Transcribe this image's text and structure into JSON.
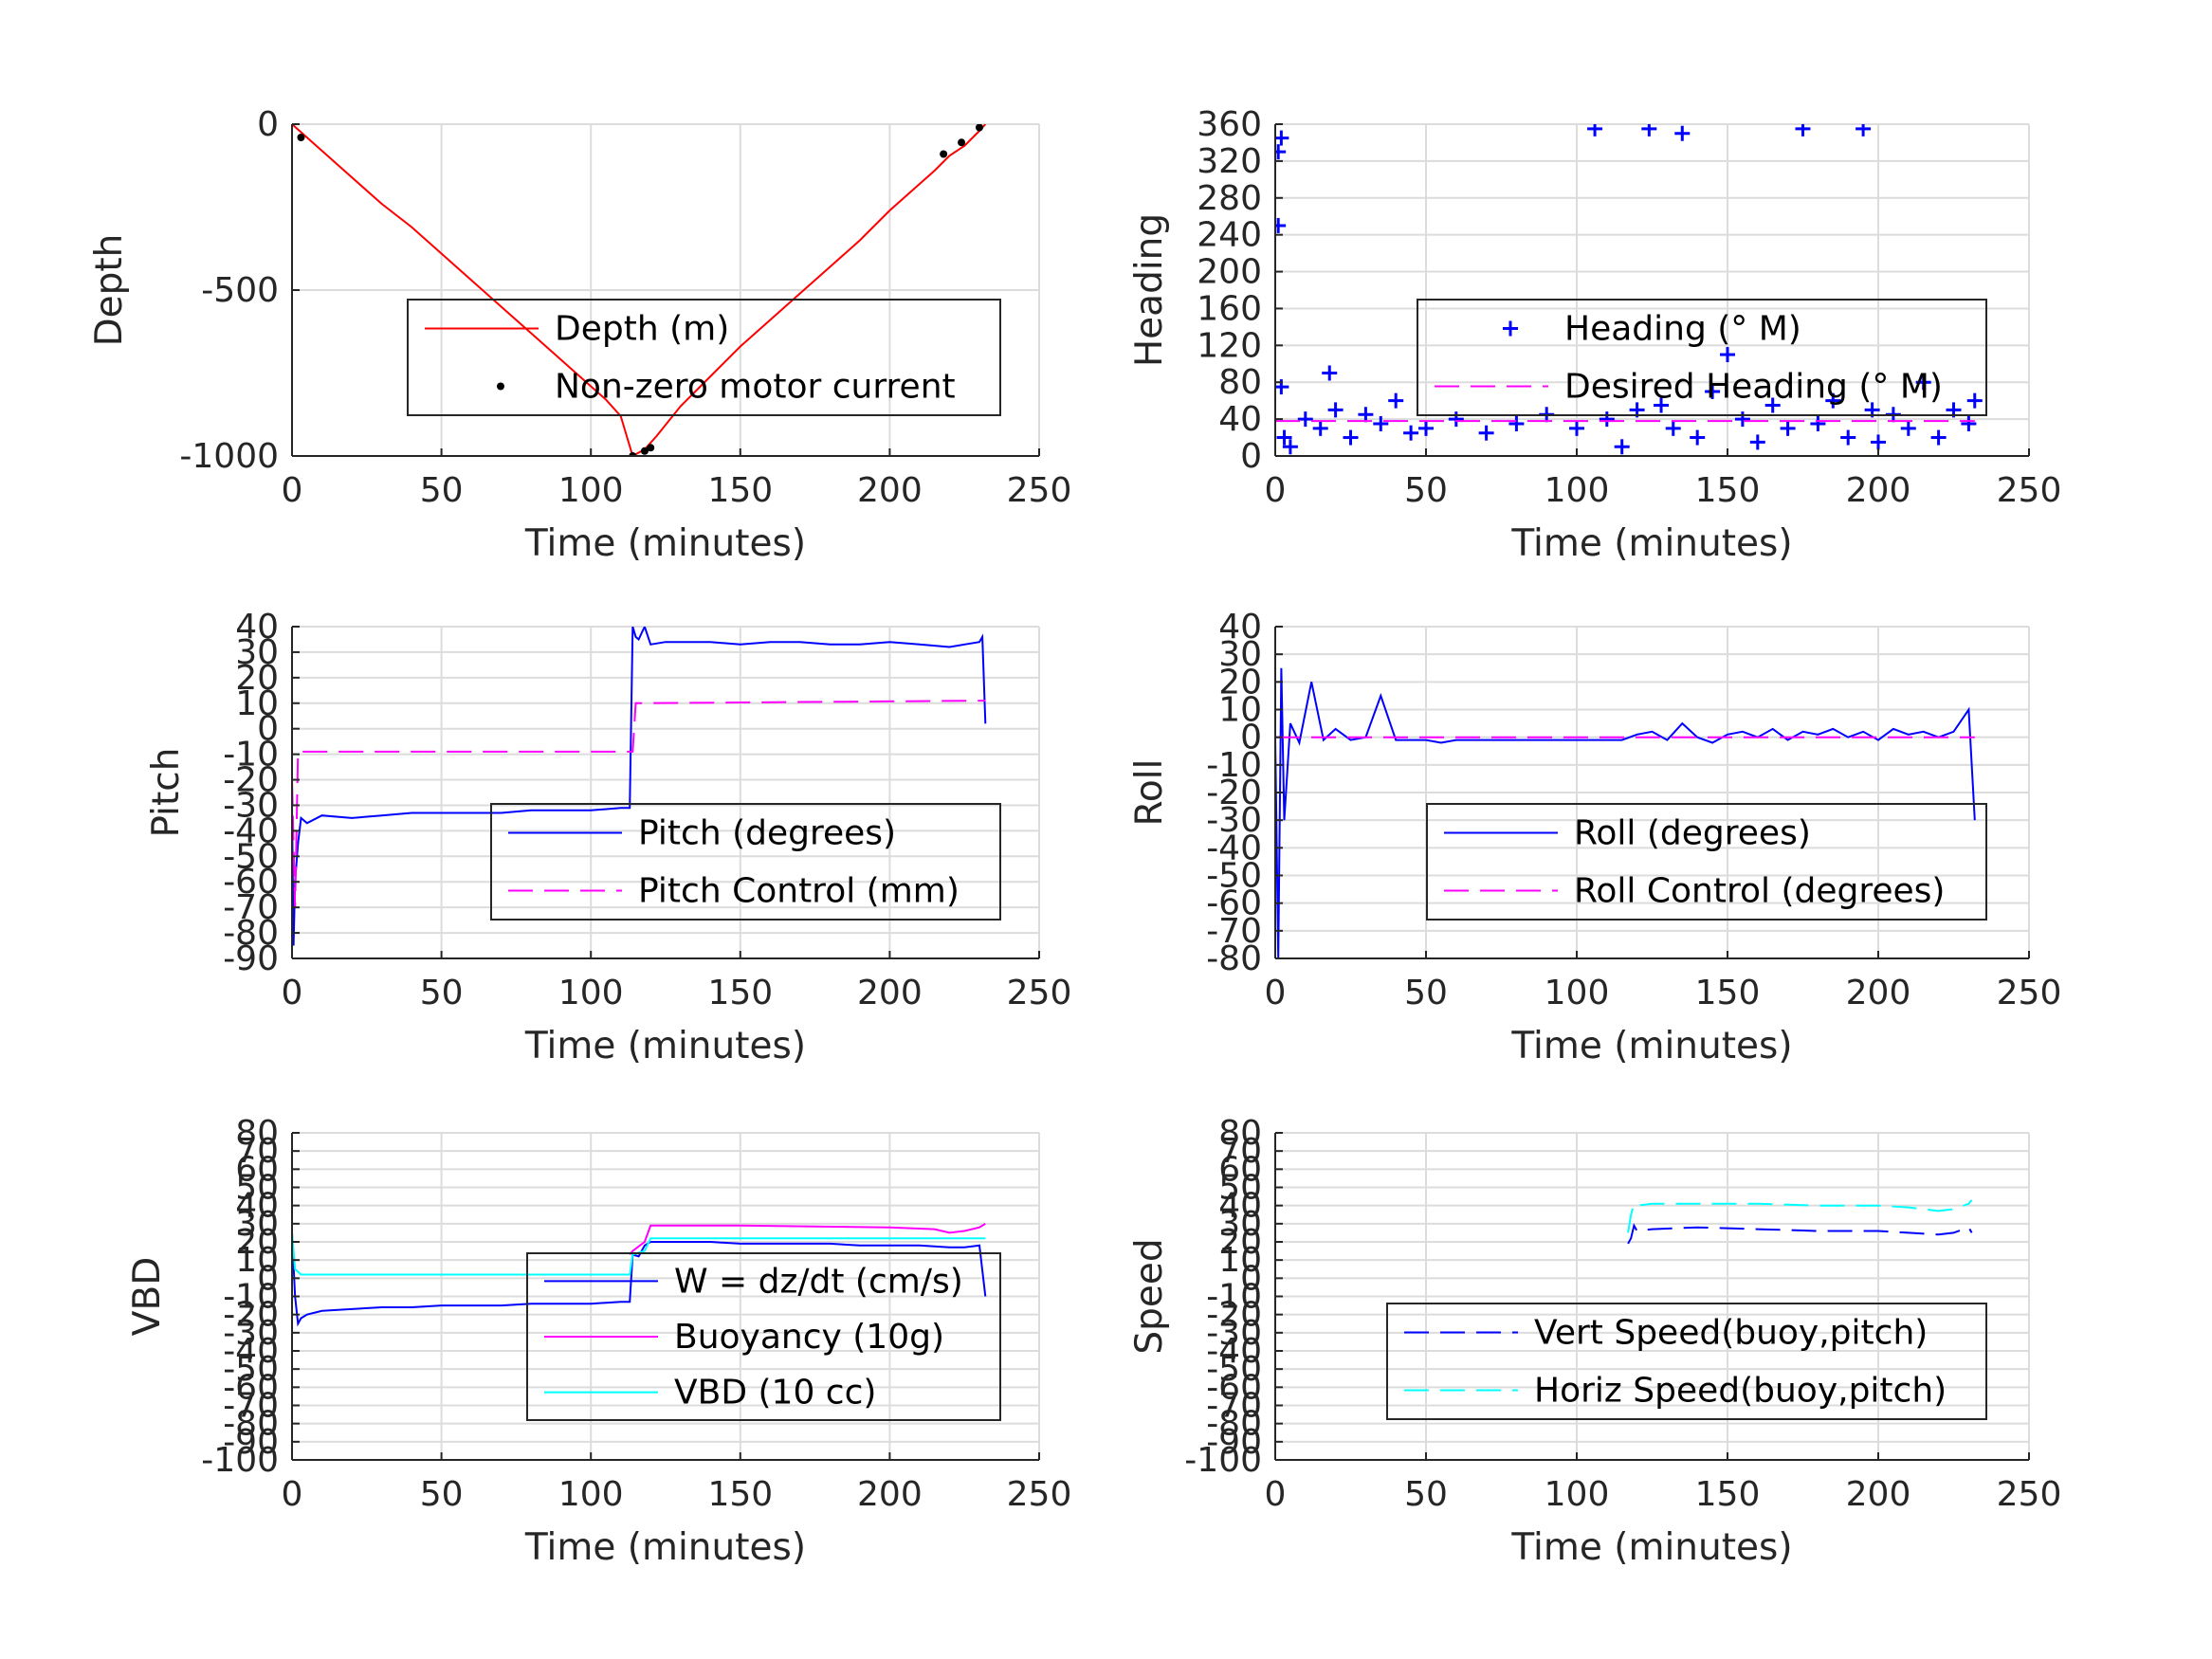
{
  "chart_data": [
    {
      "id": "depth",
      "type": "line",
      "xlabel": "Time (minutes)",
      "ylabel": "Depth",
      "xlim": [
        0,
        250
      ],
      "ylim": [
        -1000,
        0
      ],
      "xticks": [
        0,
        50,
        100,
        150,
        200,
        250
      ],
      "yticks": [
        0,
        -500,
        -1000
      ],
      "grid": true,
      "legend_position": "center-right",
      "series": [
        {
          "name": "Depth (m)",
          "style": "line",
          "color": "#ff0000",
          "x": [
            0,
            10,
            20,
            30,
            40,
            50,
            60,
            70,
            80,
            90,
            100,
            105,
            110,
            114,
            118,
            122,
            130,
            140,
            150,
            160,
            170,
            180,
            190,
            200,
            210,
            215,
            220,
            225,
            230,
            232
          ],
          "y": [
            0,
            -80,
            -160,
            -240,
            -310,
            -390,
            -470,
            -550,
            -630,
            -710,
            -790,
            -830,
            -880,
            -1000,
            -980,
            -940,
            -850,
            -760,
            -670,
            -590,
            -510,
            -430,
            -350,
            -260,
            -180,
            -140,
            -95,
            -65,
            -20,
            0
          ]
        },
        {
          "name": "Non-zero motor current",
          "style": "points",
          "color": "#000000",
          "x": [
            3,
            114,
            118,
            120,
            218,
            224,
            230
          ],
          "y": [
            -40,
            -1000,
            -985,
            -975,
            -90,
            -55,
            -10
          ]
        }
      ]
    },
    {
      "id": "heading",
      "type": "scatter",
      "xlabel": "Time (minutes)",
      "ylabel": "Heading",
      "xlim": [
        0,
        250
      ],
      "ylim": [
        0,
        360
      ],
      "xticks": [
        0,
        50,
        100,
        150,
        200,
        250
      ],
      "yticks": [
        0,
        40,
        80,
        120,
        160,
        200,
        240,
        280,
        320,
        360
      ],
      "grid": true,
      "legend_position": "center-right",
      "series": [
        {
          "name": "Heading (° M)",
          "style": "plus",
          "color": "#0000ff",
          "x": [
            1,
            1,
            2,
            2,
            3,
            5,
            10,
            15,
            18,
            20,
            25,
            30,
            35,
            40,
            45,
            50,
            60,
            70,
            80,
            90,
            100,
            106,
            110,
            115,
            120,
            124,
            128,
            132,
            135,
            140,
            145,
            150,
            155,
            160,
            165,
            170,
            175,
            180,
            185,
            190,
            195,
            198,
            200,
            205,
            210,
            215,
            220,
            225,
            230,
            232
          ],
          "y": [
            250,
            330,
            345,
            75,
            20,
            10,
            40,
            30,
            90,
            50,
            20,
            45,
            35,
            60,
            25,
            30,
            40,
            25,
            35,
            45,
            30,
            355,
            40,
            10,
            50,
            355,
            55,
            30,
            350,
            20,
            70,
            110,
            40,
            15,
            55,
            30,
            355,
            35,
            60,
            20,
            355,
            50,
            15,
            45,
            30,
            80,
            20,
            50,
            35,
            60
          ]
        },
        {
          "name": "Desired Heading (° M)",
          "style": "dash",
          "color": "#ff00ff",
          "x": [
            0,
            232
          ],
          "y": [
            38,
            38
          ]
        }
      ]
    },
    {
      "id": "pitch",
      "type": "line",
      "xlabel": "Time (minutes)",
      "ylabel": "Pitch",
      "xlim": [
        0,
        250
      ],
      "ylim": [
        -90,
        40
      ],
      "xticks": [
        0,
        50,
        100,
        150,
        200,
        250
      ],
      "yticks": [
        40,
        30,
        20,
        10,
        0,
        -10,
        -20,
        -30,
        -40,
        -50,
        -60,
        -70,
        -80,
        -90
      ],
      "grid": true,
      "legend_position": "center-right",
      "series": [
        {
          "name": "Pitch (degrees)",
          "style": "line",
          "color": "#0000ff",
          "x": [
            0,
            0.5,
            1,
            2,
            3,
            5,
            10,
            20,
            30,
            40,
            50,
            60,
            70,
            80,
            90,
            100,
            110,
            113,
            114,
            115,
            116,
            118,
            120,
            125,
            130,
            140,
            150,
            160,
            170,
            180,
            190,
            200,
            210,
            220,
            225,
            230,
            231,
            232
          ],
          "y": [
            -30,
            -85,
            -60,
            -45,
            -35,
            -37,
            -34,
            -35,
            -34,
            -33,
            -33,
            -33,
            -33,
            -32,
            -32,
            -32,
            -31,
            -31,
            40,
            36,
            35,
            40,
            33,
            34,
            34,
            34,
            33,
            34,
            34,
            33,
            33,
            34,
            33,
            32,
            33,
            34,
            36,
            2
          ]
        },
        {
          "name": "Pitch Control (mm)",
          "style": "dash",
          "color": "#ff00ff",
          "x": [
            0,
            1,
            2,
            114,
            115,
            232
          ],
          "y": [
            -20,
            -70,
            -9,
            -9,
            10,
            11
          ]
        }
      ]
    },
    {
      "id": "roll",
      "type": "line",
      "xlabel": "Time (minutes)",
      "ylabel": "Roll",
      "xlim": [
        0,
        250
      ],
      "ylim": [
        -80,
        40
      ],
      "xticks": [
        0,
        50,
        100,
        150,
        200,
        250
      ],
      "yticks": [
        40,
        30,
        20,
        10,
        0,
        -10,
        -20,
        -30,
        -40,
        -50,
        -60,
        -70,
        -80
      ],
      "grid": true,
      "legend_position": "center-right",
      "series": [
        {
          "name": "Roll (degrees)",
          "style": "line",
          "color": "#0000ff",
          "x": [
            0,
            1,
            2,
            3,
            5,
            8,
            12,
            16,
            20,
            25,
            30,
            35,
            40,
            45,
            50,
            55,
            60,
            65,
            70,
            75,
            80,
            85,
            90,
            95,
            100,
            105,
            110,
            115,
            120,
            125,
            130,
            135,
            140,
            145,
            150,
            155,
            160,
            165,
            170,
            175,
            180,
            185,
            190,
            195,
            200,
            205,
            210,
            215,
            220,
            225,
            230,
            232
          ],
          "y": [
            0,
            -80,
            25,
            -30,
            5,
            -2,
            20,
            -1,
            3,
            -1,
            0,
            15,
            -1,
            -1,
            -1,
            -2,
            -1,
            -1,
            -1,
            -1,
            -1,
            -1,
            -1,
            -1,
            -1,
            -1,
            -1,
            -1,
            1,
            2,
            -1,
            5,
            0,
            -2,
            1,
            2,
            0,
            3,
            -1,
            2,
            1,
            3,
            0,
            2,
            -1,
            3,
            1,
            2,
            0,
            2,
            10,
            -30
          ]
        },
        {
          "name": "Roll Control (degrees)",
          "style": "dash",
          "color": "#ff00ff",
          "x": [
            0,
            232
          ],
          "y": [
            0,
            0
          ]
        }
      ]
    },
    {
      "id": "vbd",
      "type": "line",
      "xlabel": "Time (minutes)",
      "ylabel": "VBD",
      "xlim": [
        0,
        250
      ],
      "ylim": [
        -100,
        80
      ],
      "xticks": [
        0,
        50,
        100,
        150,
        200,
        250
      ],
      "yticks": [
        80,
        70,
        60,
        50,
        40,
        30,
        20,
        10,
        0,
        -10,
        -20,
        -30,
        -40,
        -50,
        -60,
        -70,
        -80,
        -90,
        -100
      ],
      "grid": true,
      "legend_position": "center-right",
      "series": [
        {
          "name": "W = dz/dt (cm/s)",
          "style": "line",
          "color": "#0000ff",
          "x": [
            0,
            1,
            2,
            3,
            5,
            10,
            20,
            30,
            40,
            50,
            60,
            70,
            80,
            90,
            100,
            110,
            113,
            114,
            116,
            118,
            120,
            130,
            140,
            150,
            160,
            170,
            180,
            190,
            200,
            210,
            220,
            225,
            230,
            232
          ],
          "y": [
            25,
            -10,
            -25,
            -22,
            -20,
            -18,
            -17,
            -16,
            -16,
            -15,
            -15,
            -15,
            -14,
            -14,
            -14,
            -13,
            -13,
            13,
            12,
            18,
            20,
            20,
            20,
            19,
            19,
            19,
            19,
            18,
            18,
            18,
            17,
            17,
            18,
            -10
          ]
        },
        {
          "name": "Buoyancy (10g)",
          "style": "line",
          "color": "#ff00ff",
          "x": [
            113,
            114,
            118,
            120,
            150,
            200,
            215,
            220,
            225,
            230,
            232
          ],
          "y": [
            13,
            15,
            20,
            29,
            29,
            28,
            27,
            25,
            26,
            28,
            30
          ]
        },
        {
          "name": "VBD (10 cc)",
          "style": "line",
          "color": "#00ffff",
          "x": [
            0,
            1,
            3,
            5,
            113,
            114,
            118,
            120,
            200,
            232
          ],
          "y": [
            25,
            5,
            2,
            2,
            2,
            13,
            15,
            22,
            22,
            22
          ]
        }
      ]
    },
    {
      "id": "speed",
      "type": "line",
      "xlabel": "Time (minutes)",
      "ylabel": "Speed",
      "xlim": [
        0,
        250
      ],
      "ylim": [
        -100,
        80
      ],
      "xticks": [
        0,
        50,
        100,
        150,
        200,
        250
      ],
      "yticks": [
        80,
        70,
        60,
        50,
        40,
        30,
        20,
        10,
        0,
        -10,
        -20,
        -30,
        -40,
        -50,
        -60,
        -70,
        -80,
        -90,
        -100
      ],
      "grid": true,
      "legend_position": "bottom-right",
      "series": [
        {
          "name": "Vert Speed(buoy,pitch)",
          "style": "dash",
          "color": "#0000ff",
          "x": [
            117,
            118,
            119,
            120,
            125,
            140,
            160,
            180,
            200,
            210,
            220,
            225,
            230,
            231
          ],
          "y": [
            19,
            22,
            29,
            26,
            27,
            28,
            27,
            26,
            26,
            25,
            24,
            25,
            28,
            25
          ]
        },
        {
          "name": "Horiz Speed(buoy,pitch)",
          "style": "dash",
          "color": "#00ffff",
          "x": [
            117,
            118,
            119,
            120,
            125,
            140,
            160,
            180,
            200,
            210,
            220,
            225,
            230,
            231
          ],
          "y": [
            25,
            35,
            41,
            40,
            41,
            41,
            41,
            40,
            40,
            39,
            37,
            38,
            41,
            43
          ]
        }
      ]
    }
  ]
}
